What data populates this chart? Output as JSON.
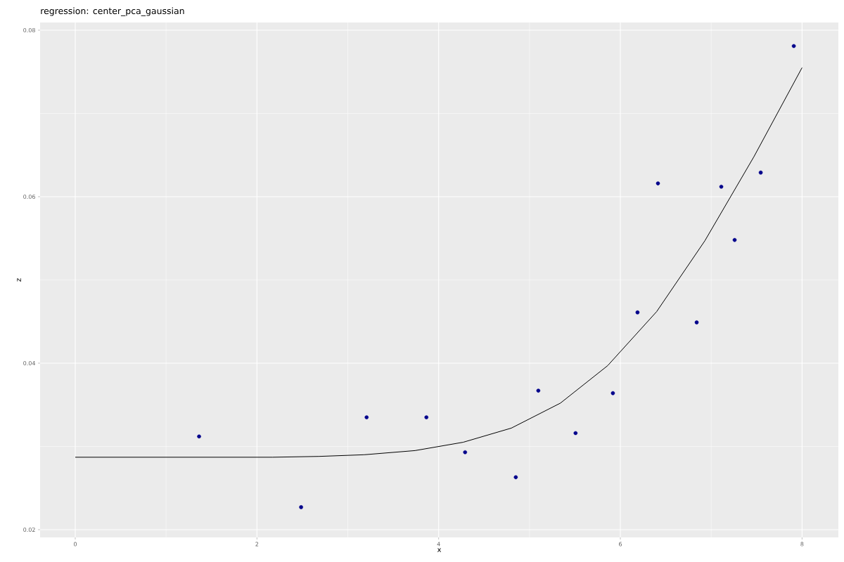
{
  "chart_data": {
    "type": "scatter",
    "title": "regression: center_pca_gaussian",
    "xlabel": "x",
    "ylabel": "z",
    "xlim": [
      -0.387,
      8.4
    ],
    "ylim": [
      0.01907,
      0.08093
    ],
    "xticks": [
      0,
      2,
      4,
      6,
      8
    ],
    "yticks": [
      0.02,
      0.04,
      0.06,
      0.08
    ],
    "grid": true,
    "series": [
      {
        "color": "#00008b",
        "marker": "circle",
        "x": [
          1.363,
          2.486,
          3.207,
          3.865,
          4.291,
          4.849,
          5.097,
          5.507,
          5.918,
          6.189,
          6.414,
          6.84,
          7.111,
          7.258,
          7.545,
          7.909
        ],
        "values": [
          0.0312,
          0.0227,
          0.0335,
          0.0335,
          0.0293,
          0.0263,
          0.0367,
          0.0316,
          0.0364,
          0.0461,
          0.0616,
          0.0449,
          0.0612,
          0.0548,
          0.0629,
          0.0781
        ]
      },
      {
        "type": "line",
        "color": "#000000",
        "marker": "none",
        "line_style": "solid",
        "x": [
          0,
          2.17,
          2.68,
          3.18,
          3.74,
          4.27,
          4.8,
          5.34,
          5.86,
          6.4,
          6.93,
          7.47,
          8
        ],
        "values": [
          0.0287,
          0.0287,
          0.0288,
          0.029,
          0.0295,
          0.0305,
          0.0322,
          0.0352,
          0.0397,
          0.0462,
          0.0547,
          0.0648,
          0.0755
        ]
      }
    ]
  }
}
